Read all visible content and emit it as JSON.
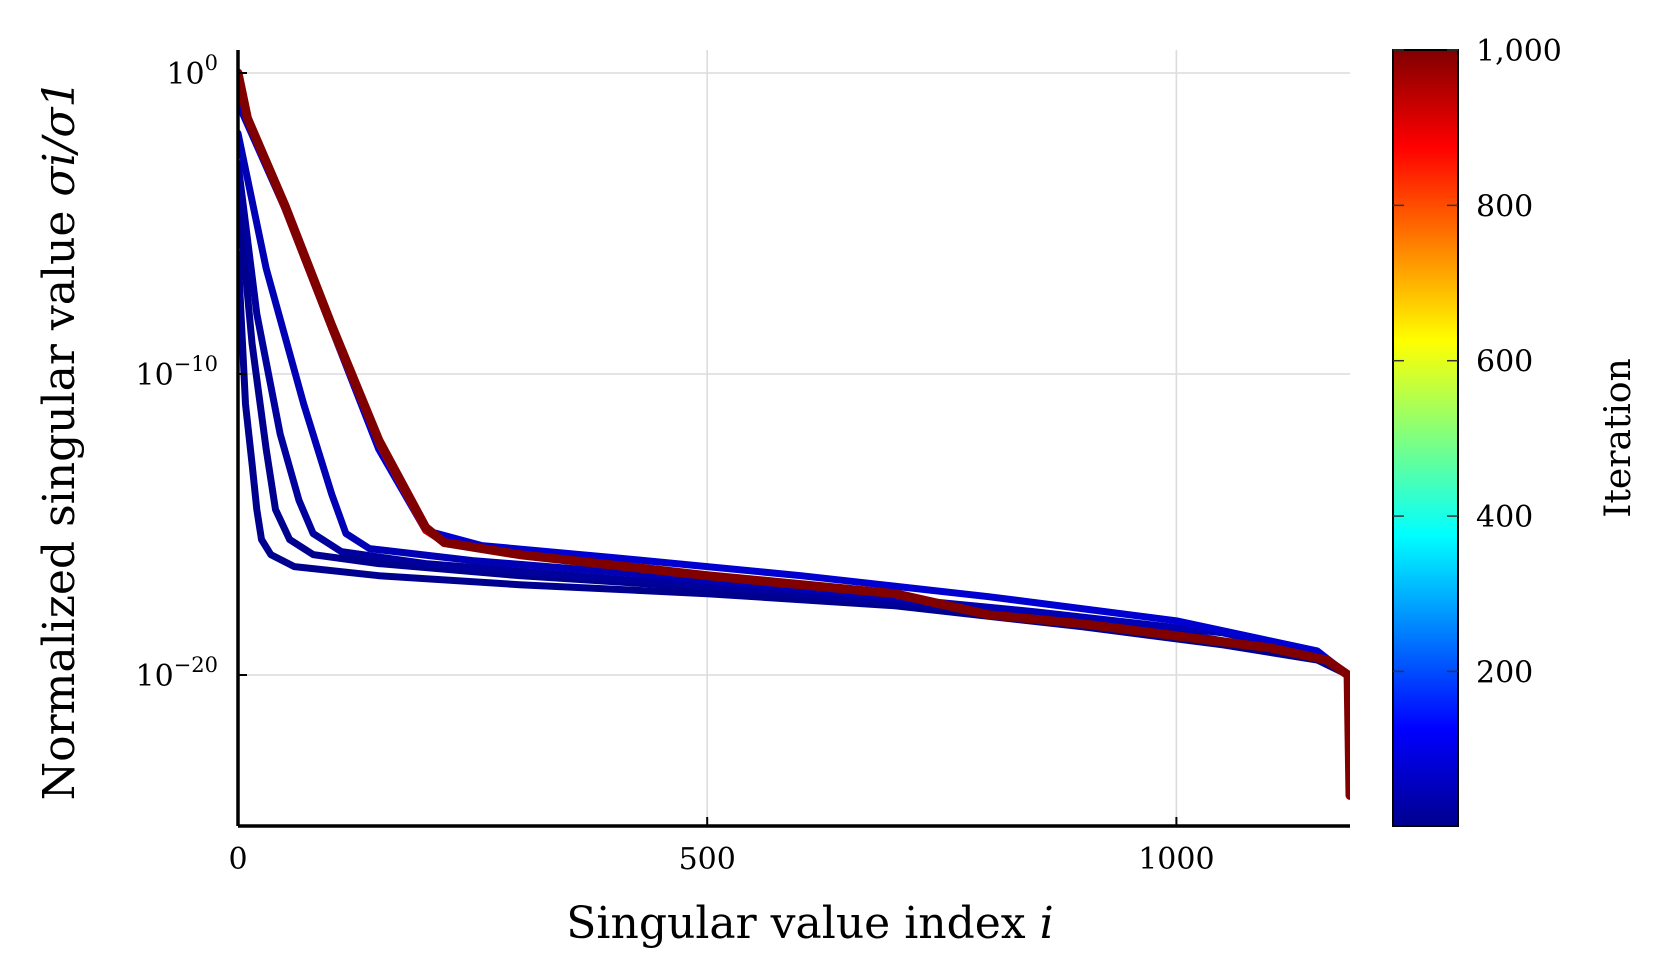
{
  "chart_data": {
    "type": "line",
    "title": "",
    "xlabel": "Singular value index",
    "xlabel_var": "i",
    "ylabel": "Normalized singular value",
    "ylabel_math": "σi/σ1",
    "xlim": [
      0,
      1185
    ],
    "ylim_log10": [
      -25,
      0.8
    ],
    "y_scale": "log",
    "grid": true,
    "x_ticks": [
      "0",
      "500",
      "1000"
    ],
    "x_tick_values": [
      0,
      500,
      1000
    ],
    "y_ticks": [
      {
        "base": "10",
        "exp": "0",
        "value_log10": 0
      },
      {
        "base": "10",
        "exp": "−10",
        "value_log10": -10
      },
      {
        "base": "10",
        "exp": "−20",
        "value_log10": -20
      }
    ],
    "colorbar": {
      "label": "Iteration",
      "ticks": [
        "200",
        "400",
        "600",
        "800",
        "1,000"
      ],
      "tick_values": [
        200,
        400,
        600,
        800,
        1000
      ],
      "range": [
        1,
        1000
      ],
      "colormap": "jet"
    },
    "series": [
      {
        "iteration": 1,
        "color": "#00008f",
        "x": [
          0,
          8,
          15,
          20,
          25,
          35,
          60,
          150,
          300,
          500,
          700,
          900,
          1050,
          1150,
          1183,
          1185
        ],
        "y_log10": [
          -6,
          -11,
          -13,
          -14.5,
          -15.5,
          -16,
          -16.4,
          -16.7,
          -17,
          -17.3,
          -17.7,
          -18.4,
          -19,
          -19.5,
          -20,
          -22
        ]
      },
      {
        "iteration": 50,
        "color": "#00008f",
        "x": [
          0,
          15,
          30,
          40,
          55,
          80,
          150,
          300,
          500,
          700,
          900,
          1050,
          1150,
          1183,
          1185
        ],
        "y_log10": [
          -4,
          -9,
          -12.5,
          -14.5,
          -15.5,
          -16,
          -16.3,
          -16.7,
          -17.1,
          -17.5,
          -18.3,
          -18.9,
          -19.4,
          -20,
          -22
        ]
      },
      {
        "iteration": 100,
        "color": "#00009c",
        "x": [
          0,
          20,
          45,
          65,
          80,
          110,
          200,
          400,
          600,
          800,
          1000,
          1150,
          1183,
          1185
        ],
        "y_log10": [
          -3,
          -8,
          -12,
          -14.2,
          -15.3,
          -15.9,
          -16.3,
          -16.8,
          -17.3,
          -17.9,
          -18.6,
          -19.4,
          -20,
          -22
        ]
      },
      {
        "iteration": 150,
        "color": "#0000b5",
        "x": [
          0,
          30,
          70,
          100,
          115,
          140,
          250,
          450,
          650,
          850,
          1050,
          1150,
          1183,
          1185
        ],
        "y_log10": [
          -2,
          -6.5,
          -11,
          -14,
          -15.3,
          -15.8,
          -16.2,
          -16.7,
          -17.3,
          -17.9,
          -18.6,
          -19.3,
          -20,
          -22
        ]
      },
      {
        "iteration": 200,
        "color": "#0000d0",
        "x": [
          0,
          50,
          100,
          150,
          200,
          260,
          400,
          600,
          800,
          1000,
          1150,
          1183,
          1185
        ],
        "y_log10": [
          -1,
          -4.5,
          -8.5,
          -12.5,
          -15.2,
          -15.7,
          -16.1,
          -16.7,
          -17.4,
          -18.2,
          -19.2,
          -20,
          -22
        ]
      },
      {
        "iteration": 900,
        "color": "#e00000",
        "x": [
          0,
          10,
          50,
          100,
          150,
          200,
          220,
          300,
          500,
          700,
          800,
          900,
          1000,
          1100,
          1160,
          1183,
          1185
        ],
        "y_log10": [
          0,
          -1.5,
          -4.5,
          -8.5,
          -12.3,
          -15.2,
          -15.6,
          -16,
          -16.7,
          -17.3,
          -18,
          -18.3,
          -18.7,
          -19.1,
          -19.5,
          -20,
          -24
        ]
      },
      {
        "iteration": 1000,
        "color": "#800000",
        "x": [
          0,
          10,
          50,
          100,
          150,
          200,
          220,
          300,
          500,
          700,
          800,
          900,
          1000,
          1100,
          1160,
          1183,
          1185
        ],
        "y_log10": [
          0,
          -1.5,
          -4.4,
          -8.4,
          -12.2,
          -15.1,
          -15.6,
          -16,
          -16.7,
          -17.3,
          -18,
          -18.3,
          -18.7,
          -19.1,
          -19.5,
          -20,
          -24
        ]
      }
    ]
  }
}
